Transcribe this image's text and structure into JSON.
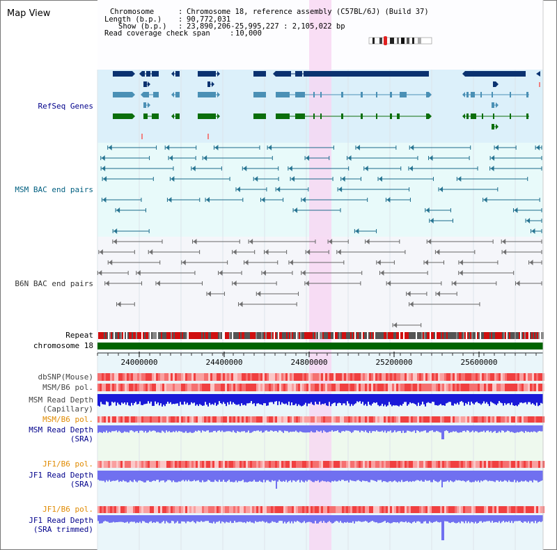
{
  "window_title": "Map View",
  "info": {
    "chromosome_key": "Chromosome",
    "chromosome_val": "Chromosome 18, reference assembly (C57BL/6J) (Build 37)",
    "length_key": "Length (b.p.)",
    "length_val": "90,772,031",
    "show_key": "Show (b.p.)",
    "show_val": "23,890,206-25,995,227 : 2,105,022 bp",
    "coverage_key": "Read coverage check span",
    "coverage_val": "10,000"
  },
  "tracks": {
    "refseq": "RefSeq Genes",
    "msm_bac": "MSM BAC end pairs",
    "b6n_bac": "B6N BAC end pairs",
    "repeat": "Repeat",
    "chromosome": "chromosome 18",
    "dbsnp": "dbSNP(Mouse)",
    "msm_b6_pol_1": "MSM/B6 pol.",
    "msm_depth_cap_1": "MSM Read Depth",
    "msm_depth_cap_2": "(Capillary)",
    "msm_b6_pol_2": "MSM/B6 pol.",
    "msm_depth_sra_1": "MSM Read Depth",
    "msm_depth_sra_2": "(SRA)",
    "jf1_b6_pol_1": "JF1/B6 pol.",
    "jf1_depth_sra_1": "JF1 Read Depth",
    "jf1_depth_sra_2": "(SRA)",
    "jf1_b6_pol_2": "JF1/B6 pol.",
    "jf1_depth_trim_1": "JF1 Read Depth",
    "jf1_depth_trim_2": "(SRA trimmed)"
  },
  "axis": {
    "ticks": [
      "24000000",
      "24400000",
      "24800000",
      "25200000",
      "25600000"
    ]
  },
  "colors": {
    "refseq_bg": "#dcf0fa",
    "bac_bg": "#e8fafa",
    "b6n_bg": "#f5f6fa",
    "highlight": "#f7d6f3",
    "gene_navy": "#0b3270",
    "gene_teal": "#4a90b5",
    "gene_green": "#0b6e0b",
    "bac_blue": "#1a6a8a",
    "chrom_green": "#006400",
    "depth_blue": "#1a1ad8",
    "depth_violet": "#7070f0",
    "label_blue": "#00008b",
    "label_orange": "#e08a00"
  }
}
